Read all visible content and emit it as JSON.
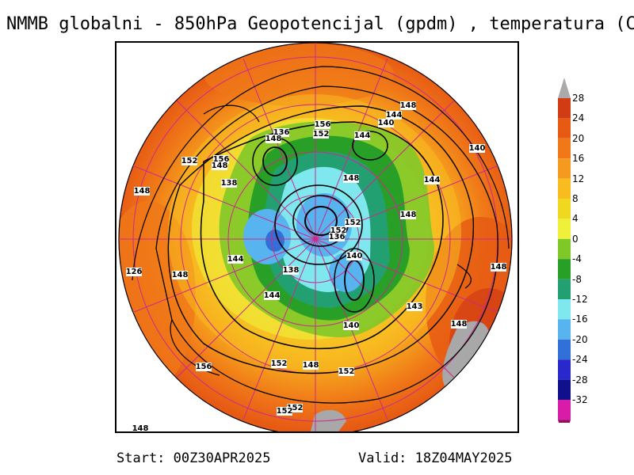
{
  "title": "NMMB globalni - 850hPa Geopotencijal (gpdm) , temperatura (C)",
  "footer": {
    "start": "Start: 00Z30APR2025",
    "valid": "Valid: 18Z04MAY2025"
  },
  "colorbar": {
    "labels": [
      "28",
      "24",
      "20",
      "16",
      "12",
      "8",
      "4",
      "0",
      "-4",
      "-8",
      "-12",
      "-16",
      "-20",
      "-24",
      "-28",
      "-32"
    ],
    "colors": [
      "#d23c14",
      "#e65a14",
      "#f07818",
      "#f59a1e",
      "#f8bc20",
      "#f0d820",
      "#eef03a",
      "#80c828",
      "#28a028",
      "#22a072",
      "#7ee8ee",
      "#58b4ee",
      "#3070d8",
      "#2828cc",
      "#10108c",
      "#d81ca8"
    ],
    "top_arrow_color": "#aaaaaa",
    "bottom_arrow_color": "#901060"
  },
  "map": {
    "projection": "polar-stereographic",
    "missing_color": "#a8a8a8",
    "contour_labels": [
      "148",
      "144",
      "140",
      "156",
      "152",
      "136",
      "148",
      "144",
      "140",
      "156",
      "152",
      "148",
      "148",
      "138",
      "144",
      "148",
      "148",
      "152",
      "152",
      "136",
      "144",
      "138",
      "140",
      "126",
      "148",
      "148",
      "143",
      "144",
      "140",
      "148",
      "152",
      "148",
      "152",
      "156",
      "148",
      "152",
      "152"
    ]
  }
}
